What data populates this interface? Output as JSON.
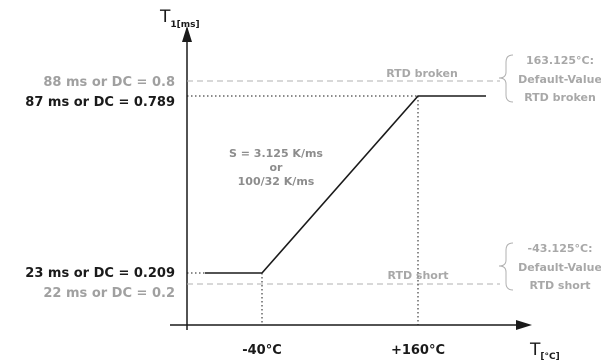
{
  "axes": {
    "y_title_main": "T",
    "y_title_sub": "1[ms]",
    "x_title_main": "T",
    "x_title_sub": "[°C]"
  },
  "y_labels": {
    "upper_limit": "88 ms or DC = 0.8",
    "upper_value": "87 ms or DC = 0.789",
    "lower_value": "23 ms or DC = 0.209",
    "lower_limit": "22 ms or DC = 0.2"
  },
  "x_labels": {
    "low": "-40°C",
    "high": "+160°C"
  },
  "threshold_labels": {
    "broken": "RTD broken",
    "short": "RTD short"
  },
  "slope_annotation": {
    "line1": "S = 3.125 K/ms",
    "line2": "or",
    "line3": "100/32 K/ms"
  },
  "notes": {
    "top": {
      "line1": "163.125°C:",
      "line2": "Default-Value",
      "line3": "RTD broken"
    },
    "bottom": {
      "line1": "-43.125°C:",
      "line2": "Default-Value",
      "line3": "RTD short"
    }
  },
  "colors": {
    "axis": "#1a1a1a",
    "curve": "#1a1a1a",
    "threshold_dash": "#b0b0b0",
    "label_grey": "#a0a0a0"
  }
}
